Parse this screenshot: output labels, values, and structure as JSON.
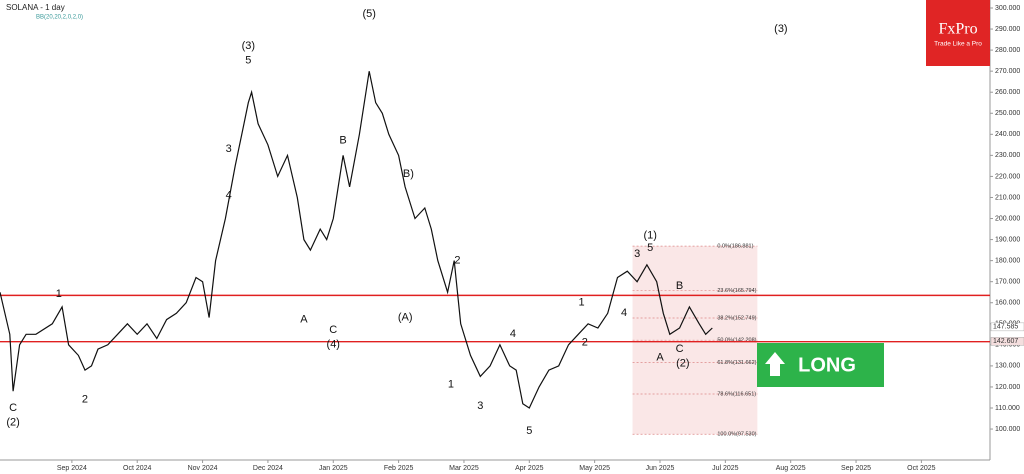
{
  "chart_data": {
    "type": "line",
    "title": "SOLANA - 1 day",
    "subtitle": "BB(20,20,2,0,2,0)",
    "brand": {
      "name": "FxPro",
      "tagline": "Trade Like a Pro"
    },
    "signal": "LONG",
    "color": "#111111",
    "grid": false,
    "xlim": [
      -1.1,
      14.05
    ],
    "ylim": [
      85.3,
      303.8
    ],
    "xticks": [
      {
        "value": 0,
        "label": "Sep 2024"
      },
      {
        "value": 1,
        "label": "Oct 2024"
      },
      {
        "value": 2,
        "label": "Nov 2024"
      },
      {
        "value": 3,
        "label": "Dec 2024"
      },
      {
        "value": 4,
        "label": "Jan 2025"
      },
      {
        "value": 5,
        "label": "Feb 2025"
      },
      {
        "value": 6,
        "label": "Mar 2025"
      },
      {
        "value": 7,
        "label": "Apr 2025"
      },
      {
        "value": 8,
        "label": "May 2025"
      },
      {
        "value": 9,
        "label": "Jun 2025"
      },
      {
        "value": 10,
        "label": "Jul 2025"
      },
      {
        "value": 11,
        "label": "Aug 2025"
      },
      {
        "value": 12,
        "label": "Sep 2025"
      },
      {
        "value": 13,
        "label": "Oct 2025"
      }
    ],
    "yticks": [
      {
        "value": 100,
        "label": "100.000"
      },
      {
        "value": 110,
        "label": "110.000"
      },
      {
        "value": 120,
        "label": "120.000"
      },
      {
        "value": 130,
        "label": "130.000"
      },
      {
        "value": 140,
        "label": "140.000"
      },
      {
        "value": 150,
        "label": "150.000"
      },
      {
        "value": 160,
        "label": "160.000"
      },
      {
        "value": 170,
        "label": "170.000"
      },
      {
        "value": 180,
        "label": "180.000"
      },
      {
        "value": 190,
        "label": "190.000"
      },
      {
        "value": 200,
        "label": "200.000"
      },
      {
        "value": 210,
        "label": "210.000"
      },
      {
        "value": 220,
        "label": "220.000"
      },
      {
        "value": 230,
        "label": "230.000"
      },
      {
        "value": 240,
        "label": "240.000"
      },
      {
        "value": 250,
        "label": "250.000"
      },
      {
        "value": 260,
        "label": "260.000"
      },
      {
        "value": 270,
        "label": "270.000"
      },
      {
        "value": 280,
        "label": "280.000"
      },
      {
        "value": 290,
        "label": "290.000"
      },
      {
        "value": 300,
        "label": "300.000"
      }
    ],
    "series": [
      {
        "name": "SOLANA",
        "color": "#111111",
        "x": [
          -1.1,
          -0.95,
          -0.9,
          -0.8,
          -0.7,
          -0.55,
          -0.3,
          -0.15,
          -0.05,
          0.1,
          0.2,
          0.3,
          0.4,
          0.55,
          0.7,
          0.85,
          1.0,
          1.15,
          1.3,
          1.45,
          1.6,
          1.75,
          1.9,
          2.0,
          2.1,
          2.2,
          2.35,
          2.5,
          2.6,
          2.7,
          2.75,
          2.85,
          3.0,
          3.15,
          3.3,
          3.45,
          3.55,
          3.65,
          3.8,
          3.9,
          4.0,
          4.15,
          4.25,
          4.4,
          4.55,
          4.65,
          4.75,
          4.85,
          5.0,
          5.1,
          5.25,
          5.4,
          5.5,
          5.6,
          5.75,
          5.85,
          5.95,
          6.1,
          6.25,
          6.4,
          6.55,
          6.7,
          6.8,
          6.9,
          7.0,
          7.15,
          7.3,
          7.45,
          7.6,
          7.75,
          7.9,
          8.05,
          8.2,
          8.35,
          8.5,
          8.65,
          8.8,
          8.95,
          9.05,
          9.15,
          9.3,
          9.45,
          9.6,
          9.7,
          9.8
        ],
        "values": [
          165,
          145,
          118,
          140,
          145,
          145,
          150,
          158,
          140,
          135,
          128,
          130,
          138,
          140,
          145,
          150,
          145,
          150,
          143,
          152,
          155,
          160,
          172,
          170,
          153,
          180,
          200,
          225,
          240,
          255,
          260,
          245,
          235,
          220,
          230,
          210,
          190,
          185,
          195,
          190,
          200,
          230,
          215,
          240,
          270,
          255,
          250,
          240,
          230,
          215,
          200,
          205,
          195,
          180,
          165,
          180,
          150,
          135,
          125,
          130,
          140,
          130,
          128,
          112,
          110,
          120,
          128,
          130,
          140,
          145,
          150,
          148,
          155,
          172,
          175,
          170,
          178,
          170,
          155,
          145,
          148,
          158,
          150,
          145,
          148
        ]
      }
    ],
    "levels": [
      {
        "value": 163.5,
        "color": "#e02020"
      },
      {
        "value": 141.5,
        "color": "#e02020"
      }
    ],
    "price_tags": [
      {
        "value": 147.585,
        "label": "147.585"
      },
      {
        "value": 142.607,
        "label": "142.607"
      }
    ],
    "fib_box": {
      "x": [
        8.58,
        10.49
      ],
      "levels": [
        {
          "value": 186.881,
          "label": "0.0%(186.881)"
        },
        {
          "value": 165.794,
          "label": "23.6%(165.794)"
        },
        {
          "value": 152.749,
          "label": "38.2%(152.749)"
        },
        {
          "value": 142.208,
          "label": "50.0%(142.208)"
        },
        {
          "value": 131.662,
          "label": "61.8%(131.662)"
        },
        {
          "value": 116.651,
          "label": "78.6%(116.651)"
        },
        {
          "value": 97.53,
          "label": "100.0%(97.530)"
        }
      ]
    },
    "annotations": [
      {
        "text": "C",
        "x": -0.9,
        "y": 110
      },
      {
        "text": "(2)",
        "x": -0.9,
        "y": 103
      },
      {
        "text": "1",
        "x": -0.2,
        "y": 164
      },
      {
        "text": "2",
        "x": 0.2,
        "y": 114
      },
      {
        "text": "3",
        "x": 2.4,
        "y": 233
      },
      {
        "text": "4",
        "x": 2.4,
        "y": 211
      },
      {
        "text": "(3)",
        "x": 2.7,
        "y": 282
      },
      {
        "text": "5",
        "x": 2.7,
        "y": 275
      },
      {
        "text": "A",
        "x": 3.55,
        "y": 152
      },
      {
        "text": "B",
        "x": 4.15,
        "y": 237
      },
      {
        "text": "C",
        "x": 4.0,
        "y": 147
      },
      {
        "text": "(4)",
        "x": 4.0,
        "y": 140
      },
      {
        "text": "(5)",
        "x": 4.55,
        "y": 297
      },
      {
        "text": "B)",
        "x": 5.15,
        "y": 221
      },
      {
        "text": "(A)",
        "x": 5.1,
        "y": 153
      },
      {
        "text": "2",
        "x": 5.9,
        "y": 180
      },
      {
        "text": "1",
        "x": 5.8,
        "y": 121
      },
      {
        "text": "3",
        "x": 6.25,
        "y": 111
      },
      {
        "text": "4",
        "x": 6.75,
        "y": 145
      },
      {
        "text": "5",
        "x": 7.0,
        "y": 99
      },
      {
        "text": "1",
        "x": 7.8,
        "y": 160
      },
      {
        "text": "2",
        "x": 7.85,
        "y": 141
      },
      {
        "text": "3",
        "x": 8.65,
        "y": 183
      },
      {
        "text": "(1)",
        "x": 8.85,
        "y": 192
      },
      {
        "text": "5",
        "x": 8.85,
        "y": 186
      },
      {
        "text": "4",
        "x": 8.45,
        "y": 155
      },
      {
        "text": "B",
        "x": 9.3,
        "y": 168
      },
      {
        "text": "A",
        "x": 9.0,
        "y": 134
      },
      {
        "text": "C",
        "x": 9.3,
        "y": 138
      },
      {
        "text": "(2)",
        "x": 9.35,
        "y": 131
      },
      {
        "text": "(3)",
        "x": 10.85,
        "y": 290
      }
    ]
  }
}
